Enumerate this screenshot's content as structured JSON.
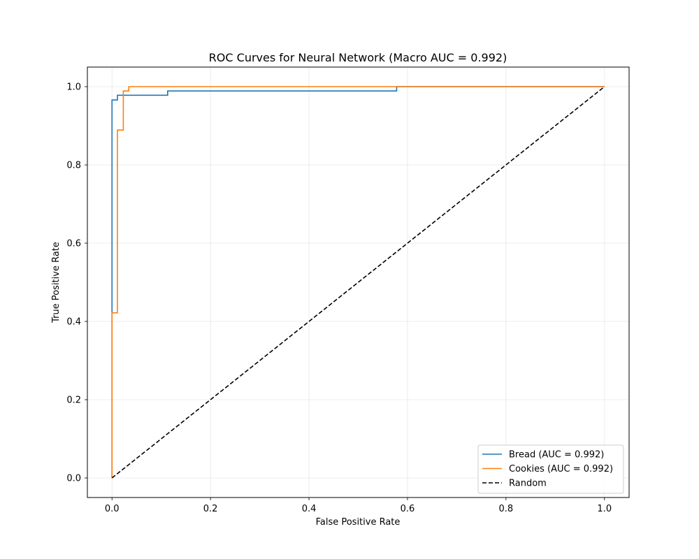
{
  "chart_data": {
    "type": "line",
    "title": "ROC Curves for Neural Network (Macro AUC = 0.992)",
    "xlabel": "False Positive Rate",
    "ylabel": "True Positive Rate",
    "xlim": [
      -0.05,
      1.05
    ],
    "ylim": [
      -0.05,
      1.05
    ],
    "xticks": [
      "0.0",
      "0.2",
      "0.4",
      "0.6",
      "0.8",
      "1.0"
    ],
    "yticks": [
      "0.0",
      "0.2",
      "0.4",
      "0.6",
      "0.8",
      "1.0"
    ],
    "grid": true,
    "legend_position": "lower right",
    "series": [
      {
        "name": "Bread (AUC = 0.992)",
        "color": "#1f77b4",
        "style": "solid",
        "x": [
          0.0,
          0.0,
          0.011,
          0.011,
          0.113,
          0.113,
          0.578,
          0.578,
          1.0
        ],
        "y": [
          0.0,
          0.966,
          0.966,
          0.978,
          0.978,
          0.989,
          0.989,
          1.0,
          1.0
        ]
      },
      {
        "name": "Cookies (AUC = 0.992)",
        "color": "#ff7f0e",
        "style": "solid",
        "x": [
          0.0,
          0.0,
          0.011,
          0.011,
          0.023,
          0.023,
          0.034,
          0.034,
          1.0
        ],
        "y": [
          0.0,
          0.422,
          0.422,
          0.889,
          0.889,
          0.989,
          0.989,
          1.0,
          1.0
        ]
      },
      {
        "name": "Random",
        "color": "#000000",
        "style": "dashed",
        "x": [
          0.0,
          1.0
        ],
        "y": [
          0.0,
          1.0
        ]
      }
    ]
  }
}
